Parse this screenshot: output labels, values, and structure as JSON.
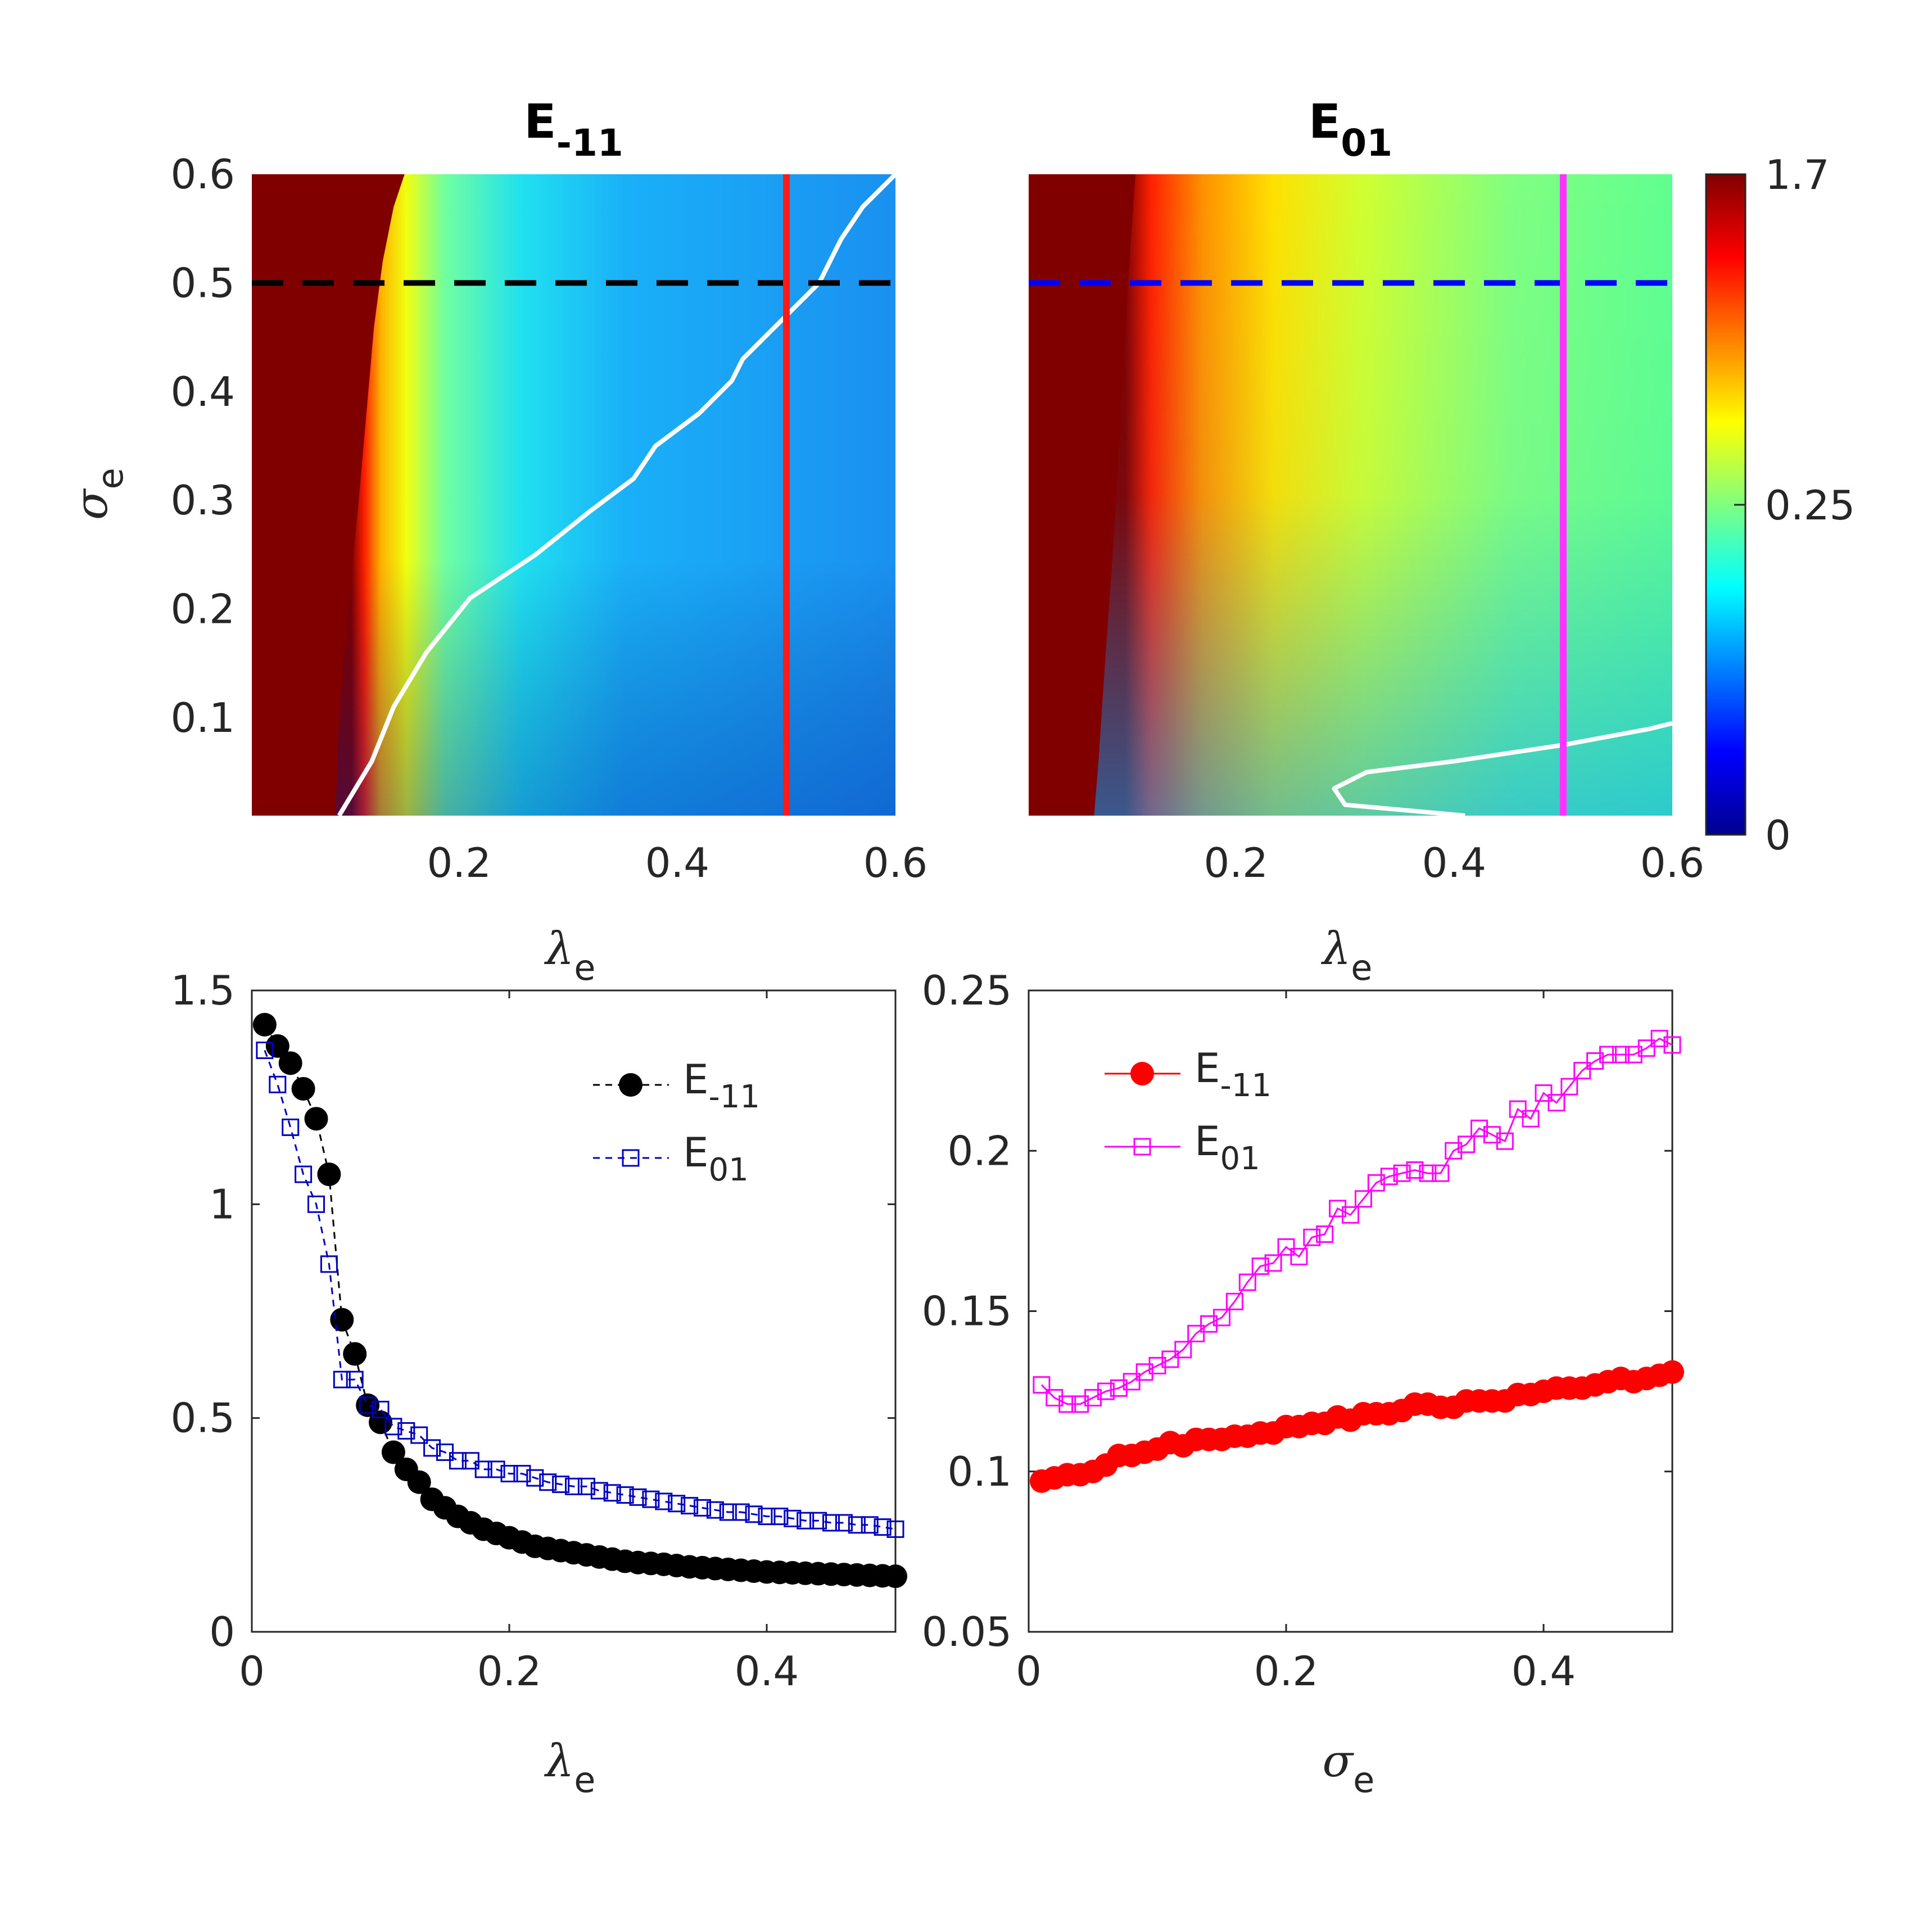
{
  "colors": {
    "dashed_black": "#000000",
    "dashed_blue": "#0000ff",
    "vline_red": "#ff1a1a",
    "vline_magenta": "#ff33ff",
    "contour": "#ffffff",
    "series_black": "#000000",
    "series_blue": "#0000bf",
    "series_red": "#ff0000",
    "series_magenta": "#ff00ff",
    "axis_text": "#262626"
  },
  "colorbar": {
    "labels": [
      "1.7",
      "0.25",
      "0"
    ],
    "colormap": "jet"
  },
  "chart_data": [
    {
      "type": "heatmap",
      "title_main": "E",
      "title_sub": "-11",
      "xlabel_sym": "λ",
      "xlabel_sub": "e",
      "ylabel_sym": "σ",
      "ylabel_sub": "e",
      "xlim": [
        0.01,
        0.6
      ],
      "ylim": [
        0.01,
        0.6
      ],
      "xticks": [
        "0.2",
        "0.4",
        "0.6"
      ],
      "yticks": [
        "0.1",
        "0.2",
        "0.3",
        "0.4",
        "0.5",
        "0.6"
      ],
      "hline": {
        "y": 0.5,
        "style": "dashed",
        "color": "black"
      },
      "vline": {
        "x": 0.5,
        "style": "solid",
        "color": "red"
      },
      "boundary": [
        [
          0.087,
          0.01
        ],
        [
          0.089,
          0.08
        ],
        [
          0.094,
          0.15
        ],
        [
          0.1,
          0.22
        ],
        [
          0.108,
          0.3
        ],
        [
          0.115,
          0.38
        ],
        [
          0.122,
          0.46
        ],
        [
          0.13,
          0.52
        ],
        [
          0.14,
          0.57
        ],
        [
          0.15,
          0.6
        ]
      ],
      "contour": [
        [
          0.09,
          0.01
        ],
        [
          0.12,
          0.06
        ],
        [
          0.14,
          0.11
        ],
        [
          0.17,
          0.16
        ],
        [
          0.21,
          0.21
        ],
        [
          0.27,
          0.25
        ],
        [
          0.32,
          0.29
        ],
        [
          0.36,
          0.32
        ],
        [
          0.38,
          0.35
        ],
        [
          0.42,
          0.38
        ],
        [
          0.45,
          0.41
        ],
        [
          0.46,
          0.43
        ],
        [
          0.48,
          0.45
        ],
        [
          0.5,
          0.47
        ],
        [
          0.53,
          0.5
        ],
        [
          0.55,
          0.54
        ],
        [
          0.57,
          0.57
        ],
        [
          0.6,
          0.6
        ]
      ]
    },
    {
      "type": "heatmap",
      "title_main": "E",
      "title_sub": "01",
      "xlabel_sym": "λ",
      "xlabel_sub": "e",
      "xlim": [
        0.01,
        0.6
      ],
      "ylim": [
        0.01,
        0.6
      ],
      "xticks": [
        "0.2",
        "0.4",
        "0.6"
      ],
      "hline": {
        "y": 0.5,
        "style": "dashed",
        "color": "blue"
      },
      "vline": {
        "x": 0.5,
        "style": "solid",
        "color": "magenta"
      },
      "boundary": [
        [
          0.07,
          0.01
        ],
        [
          0.074,
          0.06
        ],
        [
          0.08,
          0.15
        ],
        [
          0.087,
          0.25
        ],
        [
          0.093,
          0.35
        ],
        [
          0.098,
          0.45
        ],
        [
          0.103,
          0.53
        ],
        [
          0.108,
          0.6
        ]
      ],
      "contour": [
        [
          0.41,
          0.01
        ],
        [
          0.3,
          0.02
        ],
        [
          0.29,
          0.035
        ],
        [
          0.32,
          0.05
        ],
        [
          0.4,
          0.06
        ],
        [
          0.5,
          0.075
        ],
        [
          0.58,
          0.09
        ],
        [
          0.6,
          0.095
        ]
      ]
    },
    {
      "type": "scatter",
      "xlabel_sym": "λ",
      "xlabel_sub": "e",
      "xlim": [
        0,
        0.5
      ],
      "ylim": [
        0,
        1.5
      ],
      "xticks": [
        "0",
        "0.2",
        "0.4"
      ],
      "yticks": [
        "0",
        "0.5",
        "1",
        "1.5"
      ],
      "legend_position": "top-right",
      "x": [
        0.01,
        0.02,
        0.03,
        0.04,
        0.05,
        0.06,
        0.07,
        0.08,
        0.09,
        0.1,
        0.11,
        0.12,
        0.13,
        0.14,
        0.15,
        0.16,
        0.17,
        0.18,
        0.19,
        0.2,
        0.21,
        0.22,
        0.23,
        0.24,
        0.25,
        0.26,
        0.27,
        0.28,
        0.29,
        0.3,
        0.31,
        0.32,
        0.33,
        0.34,
        0.35,
        0.36,
        0.37,
        0.38,
        0.39,
        0.4,
        0.41,
        0.42,
        0.43,
        0.44,
        0.45,
        0.46,
        0.47,
        0.48,
        0.49,
        0.5
      ],
      "series": [
        {
          "name_main": "E",
          "name_sub": "-11",
          "marker": "filled-circle",
          "line": "dashed",
          "values": [
            1.42,
            1.37,
            1.33,
            1.27,
            1.2,
            1.07,
            0.73,
            0.65,
            0.53,
            0.49,
            0.42,
            0.38,
            0.35,
            0.31,
            0.29,
            0.27,
            0.255,
            0.24,
            0.23,
            0.22,
            0.21,
            0.2,
            0.195,
            0.19,
            0.185,
            0.18,
            0.175,
            0.17,
            0.165,
            0.162,
            0.16,
            0.158,
            0.155,
            0.152,
            0.15,
            0.148,
            0.146,
            0.144,
            0.142,
            0.14,
            0.139,
            0.138,
            0.137,
            0.136,
            0.135,
            0.134,
            0.133,
            0.132,
            0.131,
            0.13
          ]
        },
        {
          "name_main": "E",
          "name_sub": "01",
          "marker": "open-square",
          "line": "dashed",
          "values": [
            1.36,
            1.28,
            1.18,
            1.07,
            1.0,
            0.86,
            0.59,
            0.59,
            0.53,
            0.52,
            0.48,
            0.47,
            0.46,
            0.43,
            0.42,
            0.4,
            0.4,
            0.38,
            0.38,
            0.37,
            0.37,
            0.36,
            0.35,
            0.345,
            0.34,
            0.34,
            0.33,
            0.325,
            0.32,
            0.315,
            0.31,
            0.305,
            0.3,
            0.295,
            0.29,
            0.285,
            0.28,
            0.28,
            0.275,
            0.27,
            0.27,
            0.265,
            0.26,
            0.26,
            0.255,
            0.255,
            0.25,
            0.25,
            0.245,
            0.24
          ]
        }
      ]
    },
    {
      "type": "line",
      "xlabel_sym": "σ",
      "xlabel_sub": "e",
      "xlim": [
        0,
        0.5
      ],
      "ylim": [
        0.05,
        0.25
      ],
      "xticks": [
        "0",
        "0.2",
        "0.4"
      ],
      "yticks": [
        "0.05",
        "0.1",
        "0.15",
        "0.2",
        "0.25"
      ],
      "legend_position": "top-left",
      "x": [
        0.01,
        0.02,
        0.03,
        0.04,
        0.05,
        0.06,
        0.07,
        0.08,
        0.09,
        0.1,
        0.11,
        0.12,
        0.13,
        0.14,
        0.15,
        0.16,
        0.17,
        0.18,
        0.19,
        0.2,
        0.21,
        0.22,
        0.23,
        0.24,
        0.25,
        0.26,
        0.27,
        0.28,
        0.29,
        0.3,
        0.31,
        0.32,
        0.33,
        0.34,
        0.35,
        0.36,
        0.37,
        0.38,
        0.39,
        0.4,
        0.41,
        0.42,
        0.43,
        0.44,
        0.45,
        0.46,
        0.47,
        0.48,
        0.49,
        0.5
      ],
      "series": [
        {
          "name_main": "E",
          "name_sub": "-11",
          "marker": "filled-circle",
          "line": "solid",
          "values": [
            0.097,
            0.098,
            0.099,
            0.099,
            0.1,
            0.102,
            0.105,
            0.105,
            0.106,
            0.107,
            0.109,
            0.108,
            0.11,
            0.11,
            0.11,
            0.111,
            0.111,
            0.112,
            0.112,
            0.114,
            0.114,
            0.115,
            0.115,
            0.117,
            0.116,
            0.118,
            0.118,
            0.118,
            0.119,
            0.121,
            0.121,
            0.12,
            0.12,
            0.122,
            0.122,
            0.122,
            0.122,
            0.124,
            0.124,
            0.125,
            0.126,
            0.126,
            0.126,
            0.127,
            0.128,
            0.129,
            0.128,
            0.129,
            0.13,
            0.131
          ]
        },
        {
          "name_main": "E",
          "name_sub": "01",
          "marker": "open-square",
          "line": "solid",
          "values": [
            0.127,
            0.123,
            0.121,
            0.121,
            0.123,
            0.125,
            0.126,
            0.128,
            0.131,
            0.133,
            0.135,
            0.138,
            0.143,
            0.146,
            0.148,
            0.153,
            0.159,
            0.164,
            0.165,
            0.17,
            0.167,
            0.173,
            0.174,
            0.182,
            0.18,
            0.185,
            0.19,
            0.192,
            0.193,
            0.194,
            0.193,
            0.193,
            0.2,
            0.202,
            0.207,
            0.205,
            0.203,
            0.213,
            0.21,
            0.218,
            0.215,
            0.22,
            0.225,
            0.228,
            0.23,
            0.23,
            0.23,
            0.232,
            0.235,
            0.233
          ]
        }
      ]
    }
  ]
}
